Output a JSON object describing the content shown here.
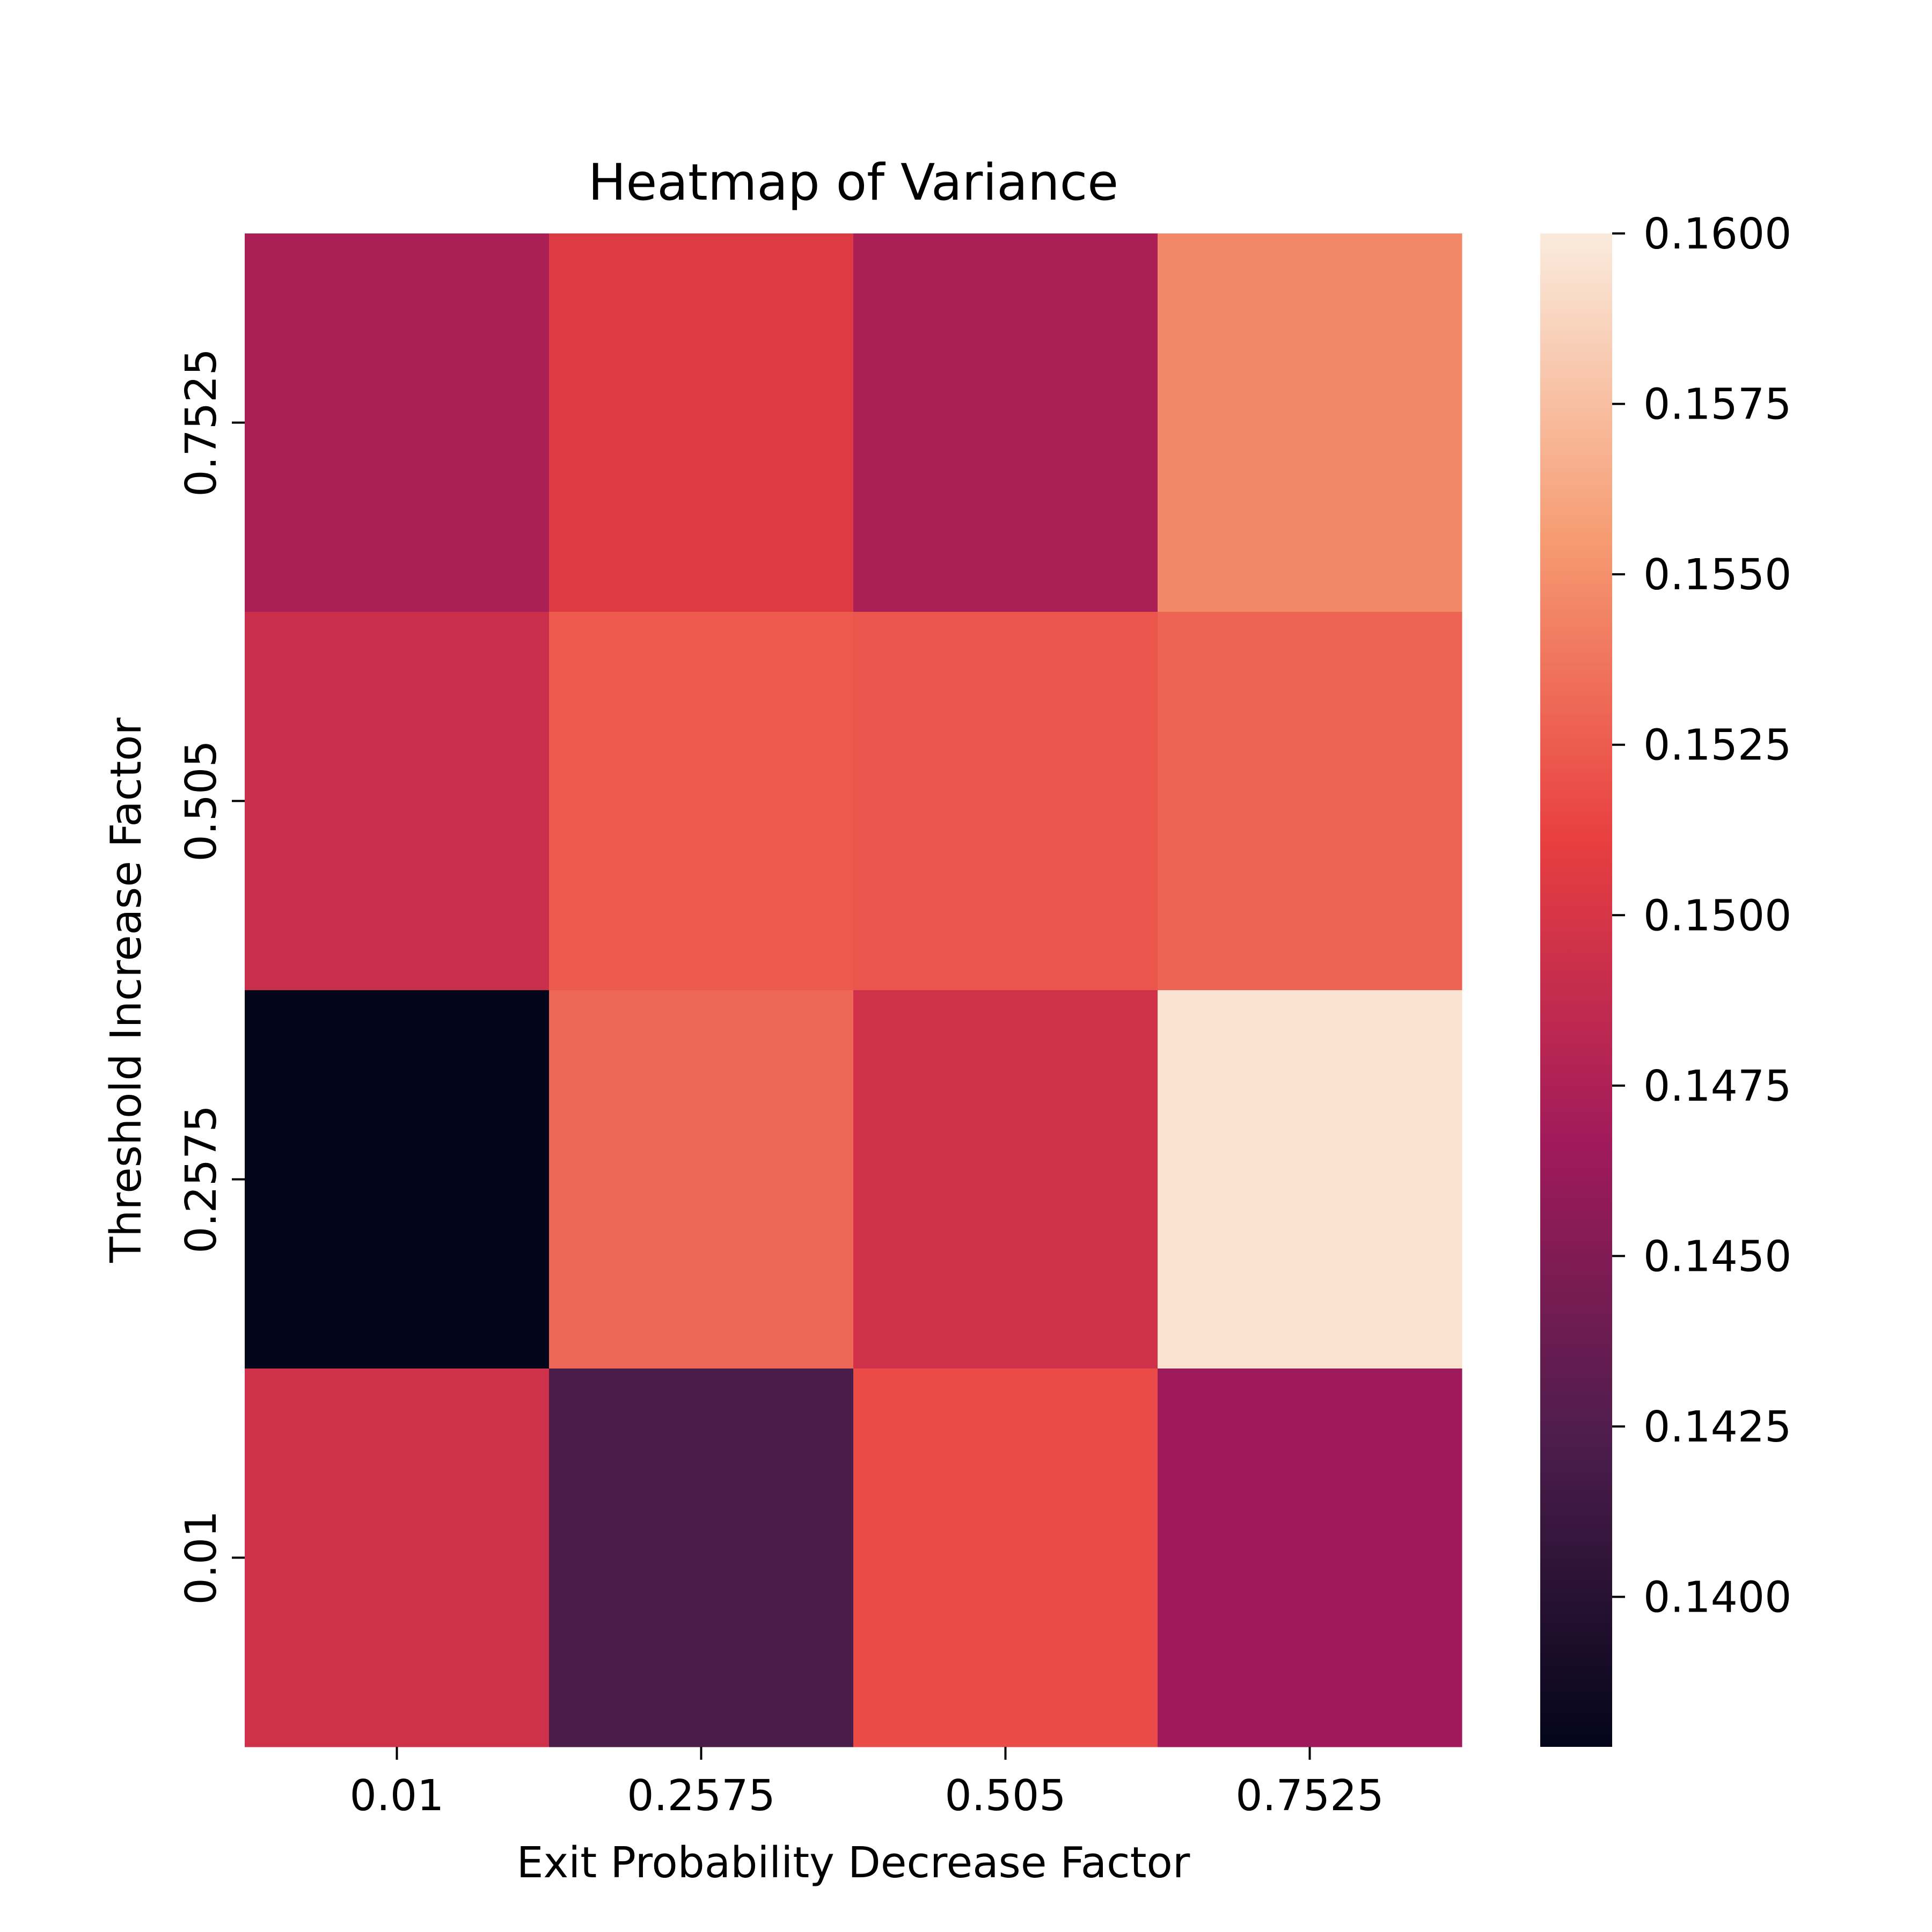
{
  "chart_data": {
    "type": "heatmap",
    "title": "Heatmap of Variance",
    "xlabel": "Exit Probability Decrease Factor",
    "ylabel": "Threshold Increase Factor",
    "x_categories": [
      "0.01",
      "0.2575",
      "0.505",
      "0.7525"
    ],
    "y_categories": [
      "0.7525",
      "0.505",
      "0.2575",
      "0.01"
    ],
    "values": [
      [
        0.1473,
        0.1505,
        0.1473,
        0.1546
      ],
      [
        0.1492,
        0.1524,
        0.1522,
        0.1529
      ],
      [
        0.1378,
        0.153,
        0.1495,
        0.1595
      ],
      [
        0.1495,
        0.1421,
        0.1517,
        0.1466
      ]
    ],
    "colorbar": {
      "min": 0.1378,
      "max": 0.16,
      "ticks": [
        "0.1400",
        "0.1425",
        "0.1450",
        "0.1475",
        "0.1500",
        "0.1525",
        "0.1550",
        "0.1575",
        "0.1600"
      ],
      "colormap": "rocket",
      "colormap_stops": [
        "#03051a",
        "#4c1d4b",
        "#a11a5b",
        "#e83f3f",
        "#f69c73",
        "#faebdd"
      ]
    },
    "grid": false
  }
}
